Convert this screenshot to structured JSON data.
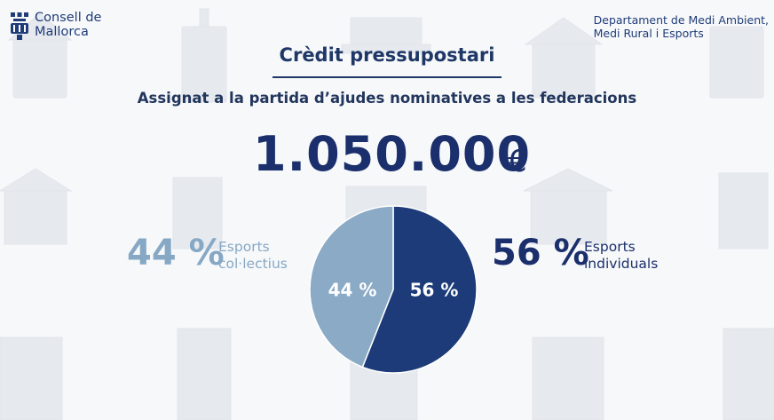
{
  "header": {
    "org_line1": "Consell de",
    "org_line2": "Mallorca",
    "dept_line1": "Departament de Medi Ambient,",
    "dept_line2": "Medi Rural i Esports"
  },
  "title": "Crèdit pressupostari",
  "subtitle": "Assignat a la partida d’ajudes nominatives a les federacions",
  "total": {
    "amount": "1.050.000",
    "currency": "€"
  },
  "left_summary": {
    "percent": "44 %",
    "line1": "Esports",
    "line2": "col·lectius"
  },
  "right_summary": {
    "percent": "56 %",
    "line1": "Esports",
    "line2": "individuals"
  },
  "colors": {
    "collective": "#86a8c5",
    "individual": "#1a3b78",
    "text": "#1a2f6b"
  },
  "chart_data": {
    "type": "pie",
    "categories": [
      "Esports col·lectius",
      "Esports individuals"
    ],
    "values": [
      44,
      56
    ],
    "labels": [
      "44 %",
      "56 %"
    ],
    "colors": [
      "#8aaac6",
      "#1c3b78"
    ]
  }
}
